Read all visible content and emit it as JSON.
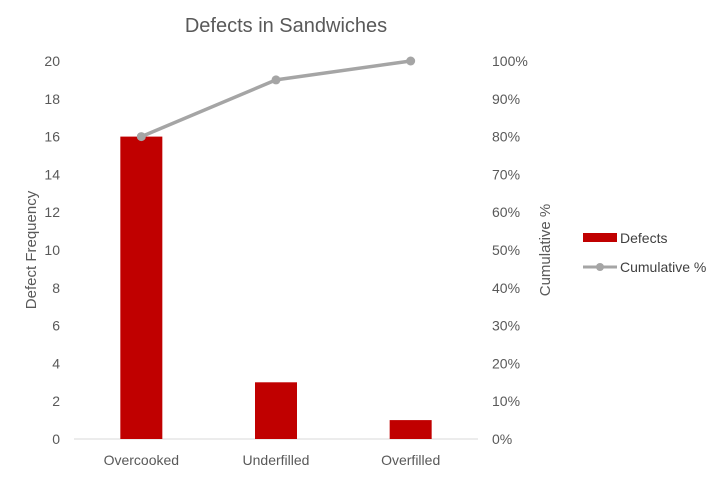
{
  "chart_data": {
    "type": "bar",
    "title": "Defects in Sandwiches",
    "categories": [
      "Overcooked",
      "Underfilled",
      "Overfilled"
    ],
    "series": [
      {
        "name": "Defects",
        "kind": "bar",
        "axis": "left",
        "color": "#C00000",
        "values": [
          16,
          3,
          1
        ]
      },
      {
        "name": "Cumulative %",
        "kind": "line",
        "axis": "right",
        "color": "#A5A5A5",
        "values": [
          80,
          95,
          100
        ]
      }
    ],
    "ylabel": "Defect Frequency",
    "ylim": [
      0,
      20
    ],
    "yticks": [
      "0",
      "2",
      "4",
      "6",
      "8",
      "10",
      "12",
      "14",
      "16",
      "18",
      "20"
    ],
    "y2label": "Cumulative %",
    "y2lim": [
      0,
      100
    ],
    "y2ticks": [
      "0%",
      "10%",
      "20%",
      "30%",
      "40%",
      "50%",
      "60%",
      "70%",
      "80%",
      "90%",
      "100%"
    ],
    "legend_position": "right",
    "grid": false
  }
}
